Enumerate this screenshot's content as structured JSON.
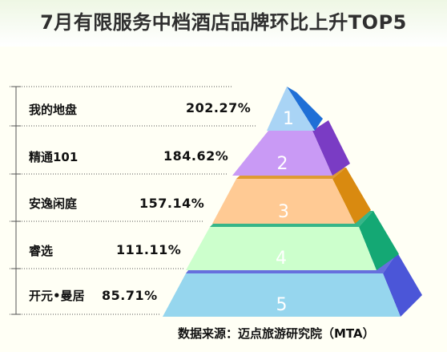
{
  "title": "7月有限服务中档酒店品牌环比上升TOP5",
  "source": "数据来源：迈点旅游研究院（MTA）",
  "chart_data": {
    "type": "bar",
    "style": "3d-pyramid",
    "title": "7月有限服务中档酒店品牌环比上升TOP5",
    "categories": [
      "我的地盘",
      "精通101",
      "安逸闲庭",
      "睿选",
      "开元•曼居"
    ],
    "ranks": [
      "1",
      "2",
      "3",
      "4",
      "5"
    ],
    "values": [
      202.27,
      184.62,
      157.14,
      111.11,
      85.71
    ],
    "value_labels": [
      "202.27%",
      "184.62%",
      "157.14%",
      "111.11%",
      "85.71%"
    ],
    "unit": "%",
    "tier_colors": [
      {
        "front": "#a9d4f5",
        "side": "#1f6fd6"
      },
      {
        "front": "#c99af5",
        "side": "#7a3cc4"
      },
      {
        "front": "#ffca94",
        "side": "#d98a10"
      },
      {
        "front": "#ccffcc",
        "side": "#14a874"
      },
      {
        "front": "#96d6ee",
        "side": "#4b56d8"
      }
    ]
  }
}
